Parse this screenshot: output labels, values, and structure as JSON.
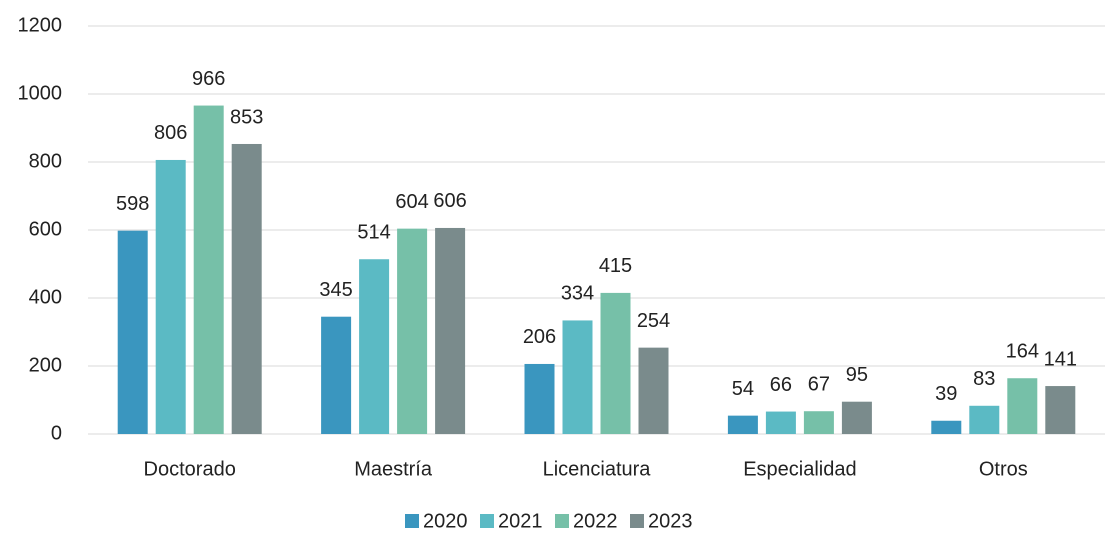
{
  "chart_data": {
    "type": "bar",
    "categories": [
      "Doctorado",
      "Maestría",
      "Licenciatura",
      "Especialidad",
      "Otros"
    ],
    "series": [
      {
        "name": "2020",
        "color": "#3a96bf",
        "values": [
          598,
          345,
          206,
          54,
          39
        ]
      },
      {
        "name": "2021",
        "color": "#5bbac4",
        "values": [
          806,
          514,
          334,
          66,
          83
        ]
      },
      {
        "name": "2022",
        "color": "#76c0a8",
        "values": [
          966,
          604,
          415,
          67,
          164
        ]
      },
      {
        "name": "2023",
        "color": "#7a8b8c",
        "values": [
          853,
          606,
          254,
          95,
          141
        ]
      }
    ],
    "ylim": [
      0,
      1200
    ],
    "yticks": [
      0,
      200,
      400,
      600,
      800,
      1000,
      1200
    ],
    "grid": true,
    "legend": "bottom"
  }
}
